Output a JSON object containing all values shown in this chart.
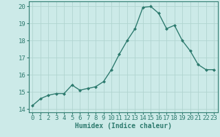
{
  "x": [
    0,
    1,
    2,
    3,
    4,
    5,
    6,
    7,
    8,
    9,
    10,
    11,
    12,
    13,
    14,
    15,
    16,
    17,
    18,
    19,
    20,
    21,
    22,
    23
  ],
  "y": [
    14.2,
    14.6,
    14.8,
    14.9,
    14.9,
    15.4,
    15.1,
    15.2,
    15.3,
    15.6,
    16.3,
    17.2,
    18.0,
    18.7,
    19.95,
    20.0,
    19.6,
    18.7,
    18.9,
    18.0,
    17.4,
    16.6,
    16.3,
    16.3
  ],
  "line_color": "#2d7a6e",
  "marker": "D",
  "marker_size": 2,
  "bg_color": "#cceae8",
  "grid_color": "#b0d4d0",
  "xlabel": "Humidex (Indice chaleur)",
  "xlim": [
    -0.5,
    23.5
  ],
  "ylim": [
    13.8,
    20.3
  ],
  "yticks": [
    14,
    15,
    16,
    17,
    18,
    19,
    20
  ],
  "xticks": [
    0,
    1,
    2,
    3,
    4,
    5,
    6,
    7,
    8,
    9,
    10,
    11,
    12,
    13,
    14,
    15,
    16,
    17,
    18,
    19,
    20,
    21,
    22,
    23
  ],
  "xlabel_fontsize": 7,
  "tick_fontsize": 6.5,
  "linewidth": 1.0
}
